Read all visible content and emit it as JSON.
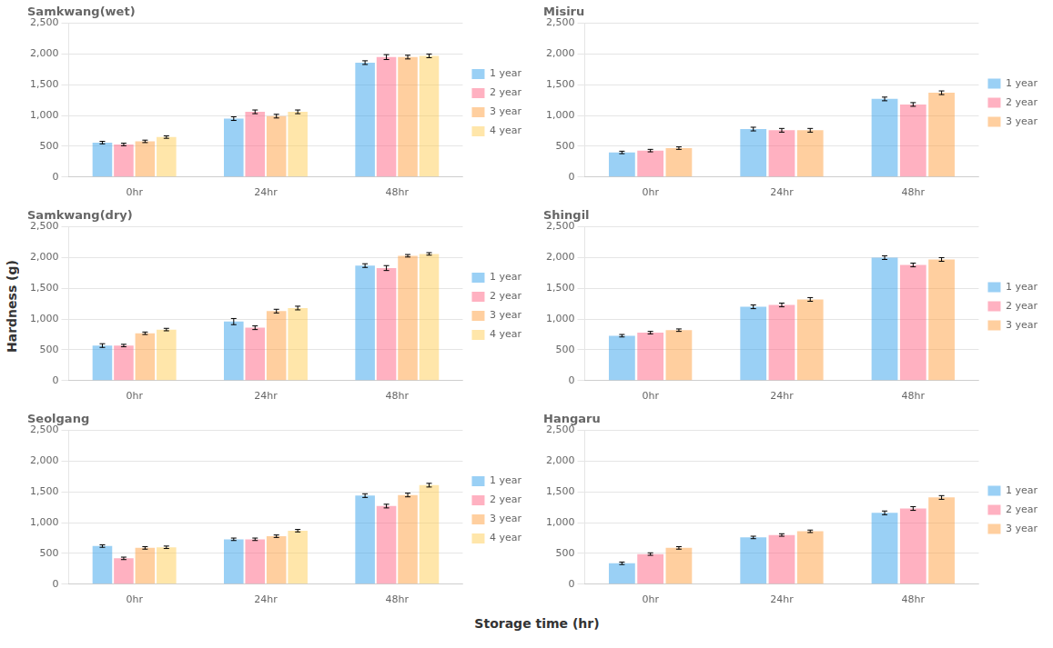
{
  "chart_data": [
    {
      "type": "bar",
      "title": "Samkwang(wet)",
      "categories": [
        "0hr",
        "24hr",
        "48hr"
      ],
      "series": [
        {
          "name": "1 year",
          "values": [
            560,
            950,
            1860
          ],
          "errors": [
            20,
            30,
            30
          ]
        },
        {
          "name": "2 year",
          "values": [
            530,
            1060,
            1950
          ],
          "errors": [
            20,
            30,
            40
          ]
        },
        {
          "name": "3 year",
          "values": [
            580,
            990,
            1950
          ],
          "errors": [
            20,
            30,
            30
          ]
        },
        {
          "name": "4 year",
          "values": [
            650,
            1060,
            1970
          ],
          "errors": [
            20,
            30,
            30
          ]
        }
      ],
      "ylim": [
        0,
        2500
      ],
      "yticks": [
        0,
        500,
        1000,
        1500,
        2000,
        2500
      ],
      "grid": true,
      "legend": "right"
    },
    {
      "type": "bar",
      "title": "Misiru",
      "categories": [
        "0hr",
        "24hr",
        "48hr"
      ],
      "series": [
        {
          "name": "1 year",
          "values": [
            400,
            780,
            1270
          ],
          "errors": [
            20,
            30,
            30
          ]
        },
        {
          "name": "2 year",
          "values": [
            430,
            760,
            1180
          ],
          "errors": [
            20,
            30,
            30
          ]
        },
        {
          "name": "3 year",
          "values": [
            470,
            760,
            1370
          ],
          "errors": [
            20,
            30,
            30
          ]
        }
      ],
      "ylim": [
        0,
        2500
      ],
      "yticks": [
        0,
        500,
        1000,
        1500,
        2000,
        2500
      ],
      "grid": true,
      "legend": "right"
    },
    {
      "type": "bar",
      "title": "Samkwang(dry)",
      "categories": [
        "0hr",
        "24hr",
        "48hr"
      ],
      "series": [
        {
          "name": "1 year",
          "values": [
            570,
            960,
            1870
          ],
          "errors": [
            30,
            50,
            30
          ]
        },
        {
          "name": "2 year",
          "values": [
            570,
            860,
            1830
          ],
          "errors": [
            20,
            30,
            40
          ]
        },
        {
          "name": "3 year",
          "values": [
            770,
            1130,
            2030
          ],
          "errors": [
            20,
            30,
            20
          ]
        },
        {
          "name": "4 year",
          "values": [
            830,
            1180,
            2060
          ],
          "errors": [
            20,
            30,
            20
          ]
        }
      ],
      "ylim": [
        0,
        2500
      ],
      "yticks": [
        0,
        500,
        1000,
        1500,
        2000,
        2500
      ],
      "grid": true,
      "legend": "right"
    },
    {
      "type": "bar",
      "title": "Shingil",
      "categories": [
        "0hr",
        "24hr",
        "48hr"
      ],
      "series": [
        {
          "name": "1 year",
          "values": [
            730,
            1200,
            2000
          ],
          "errors": [
            20,
            30,
            30
          ]
        },
        {
          "name": "2 year",
          "values": [
            780,
            1230,
            1880
          ],
          "errors": [
            20,
            30,
            30
          ]
        },
        {
          "name": "3 year",
          "values": [
            820,
            1320,
            1970
          ],
          "errors": [
            20,
            30,
            30
          ]
        }
      ],
      "ylim": [
        0,
        2500
      ],
      "yticks": [
        0,
        500,
        1000,
        1500,
        2000,
        2500
      ],
      "grid": true,
      "legend": "right"
    },
    {
      "type": "bar",
      "title": "Seolgang",
      "categories": [
        "0hr",
        "24hr",
        "48hr"
      ],
      "series": [
        {
          "name": "1 year",
          "values": [
            620,
            730,
            1440
          ],
          "errors": [
            20,
            20,
            30
          ]
        },
        {
          "name": "2 year",
          "values": [
            420,
            730,
            1270
          ],
          "errors": [
            20,
            20,
            30
          ]
        },
        {
          "name": "3 year",
          "values": [
            590,
            780,
            1450
          ],
          "errors": [
            20,
            20,
            30
          ]
        },
        {
          "name": "4 year",
          "values": [
            600,
            870,
            1610
          ],
          "errors": [
            20,
            20,
            30
          ]
        }
      ],
      "ylim": [
        0,
        2500
      ],
      "yticks": [
        0,
        500,
        1000,
        1500,
        2000,
        2500
      ],
      "grid": true,
      "legend": "right"
    },
    {
      "type": "bar",
      "title": "Hangaru",
      "categories": [
        "0hr",
        "24hr",
        "48hr"
      ],
      "series": [
        {
          "name": "1 year",
          "values": [
            340,
            760,
            1160
          ],
          "errors": [
            20,
            20,
            30
          ]
        },
        {
          "name": "2 year",
          "values": [
            490,
            800,
            1230
          ],
          "errors": [
            20,
            20,
            30
          ]
        },
        {
          "name": "3 year",
          "values": [
            590,
            860,
            1410
          ],
          "errors": [
            20,
            20,
            30
          ]
        }
      ],
      "ylim": [
        0,
        2500
      ],
      "yticks": [
        0,
        500,
        1000,
        1500,
        2000,
        2500
      ],
      "grid": true,
      "legend": "right"
    }
  ],
  "xlabel": "Storage time (hr)",
  "ylabel": "Hardness (g)"
}
